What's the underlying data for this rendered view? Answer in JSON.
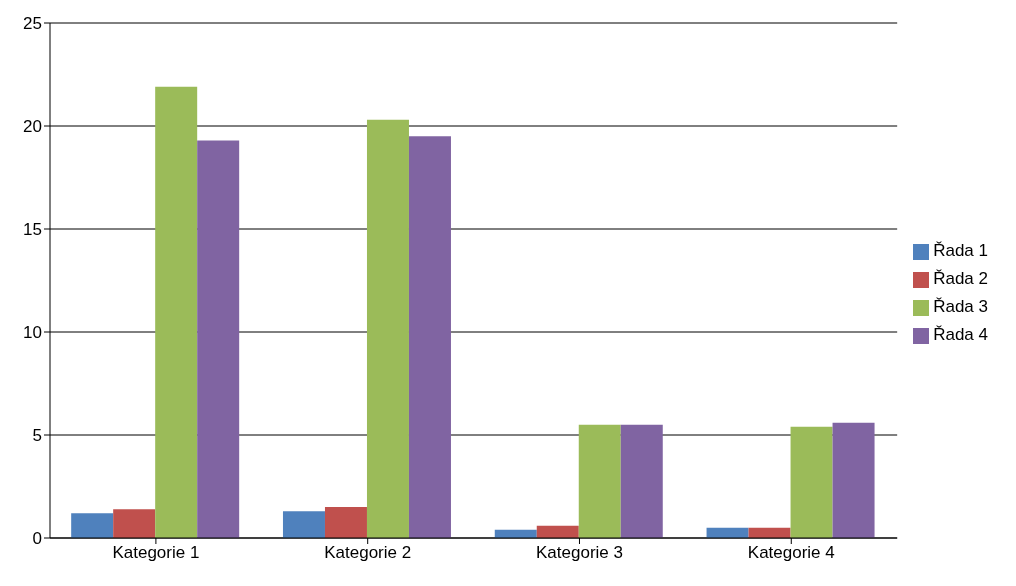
{
  "chart_data": {
    "type": "bar",
    "categories": [
      "Kategorie 1",
      "Kategorie 2",
      "Kategorie 3",
      "Kategorie 4"
    ],
    "series": [
      {
        "name": "Řada 1",
        "color": "#4f81bd",
        "values": [
          1.2,
          1.3,
          0.4,
          0.5
        ]
      },
      {
        "name": "Řada 2",
        "color": "#c0504d",
        "values": [
          1.4,
          1.5,
          0.6,
          0.5
        ]
      },
      {
        "name": "Řada 3",
        "color": "#9bbb59",
        "values": [
          21.9,
          20.3,
          5.5,
          5.4
        ]
      },
      {
        "name": "Řada 4",
        "color": "#8064a2",
        "values": [
          19.3,
          19.5,
          5.5,
          5.6
        ]
      }
    ],
    "ylim": [
      0,
      25
    ],
    "yticks": [
      0,
      5,
      10,
      15,
      20,
      25
    ],
    "grid": "y",
    "legend": "right"
  }
}
